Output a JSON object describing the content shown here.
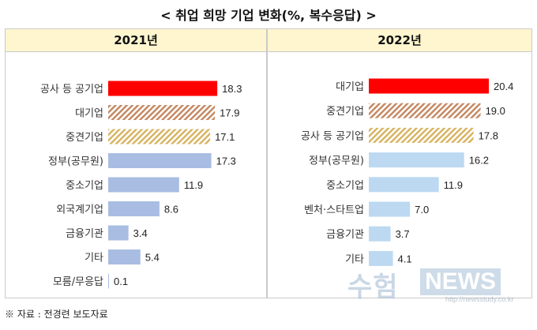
{
  "title": "< 취업 희망 기업 변화(%, 복수응답) >",
  "footnote": "※ 자료 : 전경련 보도자료",
  "watermark": {
    "big": "수험",
    "news": "NEWS",
    "url": "http://newsstudy.co.kr"
  },
  "colors": {
    "red": "#ff0000",
    "brown_hatch": "#c4865f",
    "gold_hatch": "#d7b25e",
    "blue": "#a9bde3",
    "lightblue": "#bcd9f1"
  },
  "chart_data": [
    {
      "type": "bar",
      "title": "2021년",
      "orientation": "horizontal",
      "categories": [
        "공사 등 공기업",
        "대기업",
        "중견기업",
        "정부(공무원)",
        "중소기업",
        "외국계기업",
        "금융기관",
        "기타",
        "모름/무응답"
      ],
      "values": [
        18.3,
        17.9,
        17.1,
        17.3,
        11.9,
        8.6,
        3.4,
        5.4,
        0.1
      ],
      "value_labels": [
        "18.3",
        "17.9",
        "17.1",
        "17.3",
        "11.9",
        "8.6",
        "3.4",
        "5.4",
        "0.1"
      ],
      "bar_styles": [
        "red",
        "brown_hatch",
        "gold_hatch",
        "blue",
        "blue",
        "blue",
        "blue",
        "blue",
        "blue"
      ],
      "xlim": [
        0,
        20.4
      ],
      "grid": false
    },
    {
      "type": "bar",
      "title": "2022년",
      "orientation": "horizontal",
      "categories": [
        "대기업",
        "중견기업",
        "공사 등 공기업",
        "정부(공무원)",
        "중소기업",
        "벤처·스타트업",
        "금융기관",
        "기타"
      ],
      "values": [
        20.4,
        19.0,
        17.8,
        16.2,
        11.9,
        7.0,
        3.7,
        4.1
      ],
      "value_labels": [
        "20.4",
        "19.0",
        "17.8",
        "16.2",
        "11.9",
        "7.0",
        "3.7",
        "4.1"
      ],
      "bar_styles": [
        "red",
        "brown_hatch",
        "gold_hatch",
        "lightblue",
        "lightblue",
        "lightblue",
        "lightblue",
        "lightblue"
      ],
      "xlim": [
        0,
        20.4
      ],
      "grid": false
    }
  ]
}
